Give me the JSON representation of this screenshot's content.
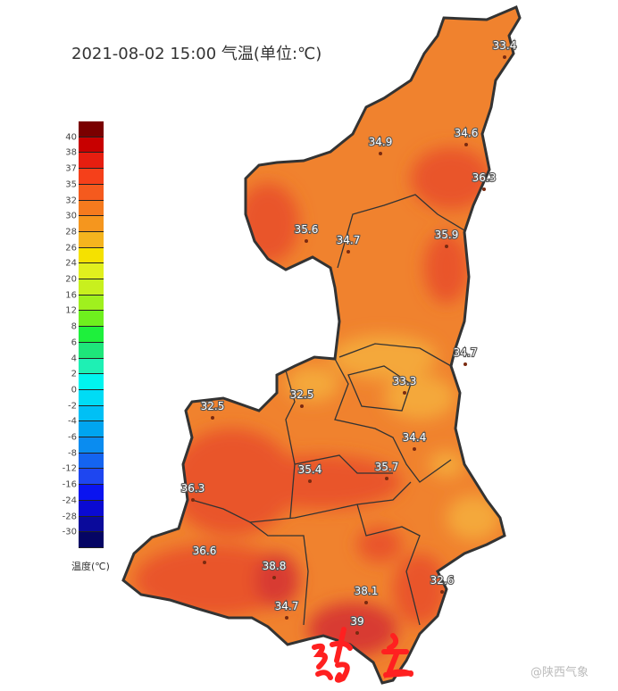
{
  "title": "2021-08-02 15:00 气温(单位:℃)",
  "legend": {
    "unit": "温度(℃)",
    "labels": [
      "40",
      "38",
      "37",
      "35",
      "32",
      "30",
      "28",
      "26",
      "24",
      "20",
      "16",
      "12",
      "8",
      "6",
      "4",
      "2",
      "0",
      "-2",
      "-4",
      "-6",
      "-8",
      "-12",
      "-16",
      "-24",
      "-28",
      "-30"
    ],
    "colors": [
      "#7a0000",
      "#c80000",
      "#e61e10",
      "#f5401a",
      "#f55a1e",
      "#f57a1e",
      "#f5961e",
      "#f5b41e",
      "#f5e100",
      "#e1f01e",
      "#c8f01e",
      "#a0f01e",
      "#6ef01e",
      "#1ef03c",
      "#1ee67a",
      "#1ef0b4",
      "#00f5f0",
      "#00dcf5",
      "#00c0f5",
      "#00a5f0",
      "#0a8cf0",
      "#1464f0",
      "#1e46f0",
      "#0a14f0",
      "#0a0ad2",
      "#0a0a9b",
      "#050564"
    ]
  },
  "stations": [
    {
      "value": "33.4"
    },
    {
      "value": "34.9"
    },
    {
      "value": "34.6"
    },
    {
      "value": "36.3"
    },
    {
      "value": "35.6"
    },
    {
      "value": "34.7"
    },
    {
      "value": "35.9"
    },
    {
      "value": "34.7"
    },
    {
      "value": "33.3"
    },
    {
      "value": "32.5"
    },
    {
      "value": "32.5"
    },
    {
      "value": "34.4"
    },
    {
      "value": "35.4"
    },
    {
      "value": "35.7"
    },
    {
      "value": "36.3"
    },
    {
      "value": "36.6"
    },
    {
      "value": "38.8"
    },
    {
      "value": "38.1"
    },
    {
      "value": "32.6"
    },
    {
      "value": "34.7"
    },
    {
      "value": "39"
    }
  ],
  "colors": {
    "base": "#f0822e",
    "hot": "#e9552a",
    "hottest": "#d83a30",
    "warm": "#f4a83a",
    "border": "#333333"
  },
  "watermark": "@陕西气象"
}
